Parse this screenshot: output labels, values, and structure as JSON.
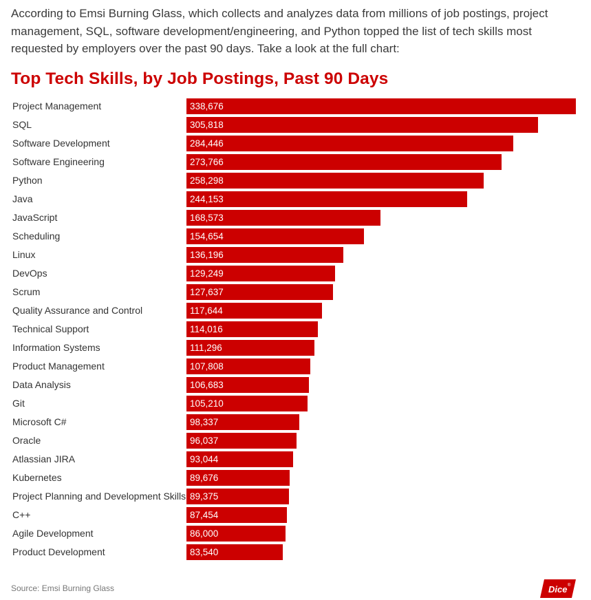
{
  "intro_text": "According to Emsi Burning Glass, which collects and analyzes data from millions of job postings, project management, SQL, software development/engineering, and Python topped the list of tech skills most requested by employers over the past 90 days. Take a look at the full chart:",
  "colors": {
    "bar": "#cc0000",
    "title": "#cc0000"
  },
  "chart_data": {
    "type": "bar",
    "orientation": "horizontal",
    "title": "Top Tech Skills, by Job Postings, Past 90 Days",
    "xlabel": "",
    "ylabel": "",
    "grid": false,
    "legend": "none",
    "xlim": [
      0,
      338676
    ],
    "categories": [
      "Project Management",
      "SQL",
      "Software Development",
      "Software Engineering",
      "Python",
      "Java",
      "JavaScript",
      "Scheduling",
      "Linux",
      "DevOps",
      "Scrum",
      "Quality Assurance and Control",
      "Technical Support",
      "Information Systems",
      "Product Management",
      "Data Analysis",
      "Git",
      "Microsoft C#",
      "Oracle",
      "Atlassian JIRA",
      "Kubernetes",
      "Project Planning and Development Skills",
      "C++",
      "Agile Development",
      "Product Development"
    ],
    "values": [
      338676,
      305818,
      284446,
      273766,
      258298,
      244153,
      168573,
      154654,
      136196,
      129249,
      127637,
      117644,
      114016,
      111296,
      107808,
      106683,
      105210,
      98337,
      96037,
      93044,
      89676,
      89375,
      87454,
      86000,
      83540
    ],
    "value_labels": [
      "338,676",
      "305,818",
      "284,446",
      "273,766",
      "258,298",
      "244,153",
      "168,573",
      "154,654",
      "136,196",
      "129,249",
      "127,637",
      "117,644",
      "114,016",
      "111,296",
      "107,808",
      "106,683",
      "105,210",
      "98,337",
      "96,037",
      "93,044",
      "89,676",
      "89,375",
      "87,454",
      "86,000",
      "83,540"
    ]
  },
  "footer": {
    "source_text": "Source: Emsi Burning Glass",
    "logo_text": "Dice",
    "logo_mark": "®"
  }
}
